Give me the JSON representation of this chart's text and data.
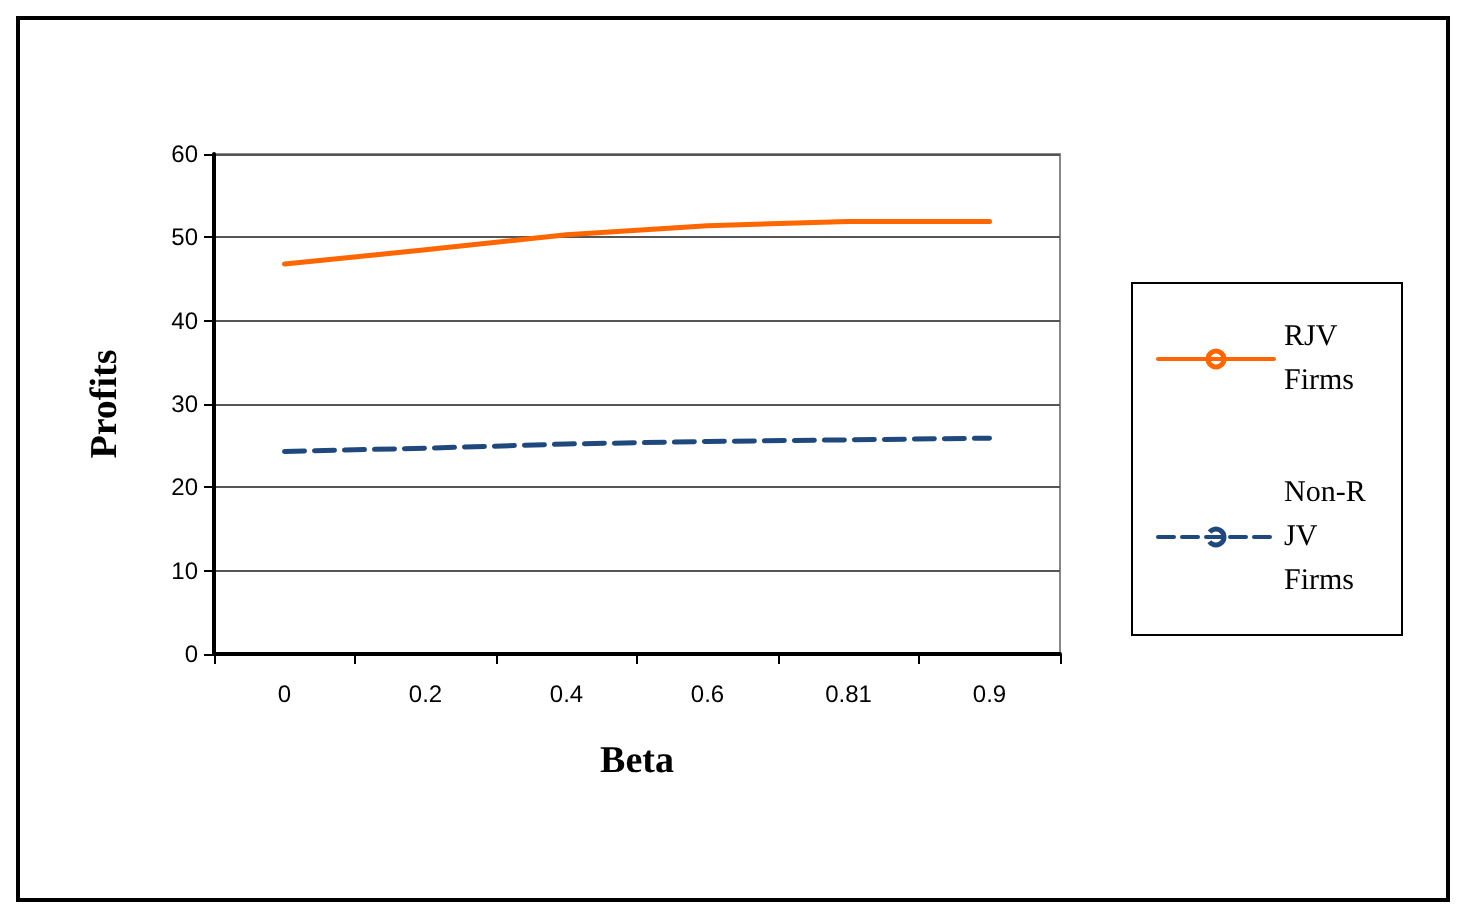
{
  "chart_data": {
    "type": "line",
    "xlabel": "Beta",
    "ylabel": "Profits",
    "categories": [
      "0",
      "0.2",
      "0.4",
      "0.6",
      "0.81",
      "0.9"
    ],
    "series": [
      {
        "name": "RJV Firms",
        "color": "#ff6600",
        "line_style": "solid",
        "values": [
          46.8,
          48.5,
          50.3,
          51.4,
          51.9,
          51.9
        ]
      },
      {
        "name": "Non-RJV Firms",
        "color": "#1f497d",
        "line_style": "dashed",
        "values": [
          24.3,
          24.7,
          25.2,
          25.5,
          25.7,
          25.9
        ]
      }
    ],
    "ylim": [
      0,
      60
    ],
    "yticks": [
      0,
      10,
      20,
      30,
      40,
      50,
      60
    ],
    "grid": "y",
    "legend": "right",
    "marker": "none"
  }
}
